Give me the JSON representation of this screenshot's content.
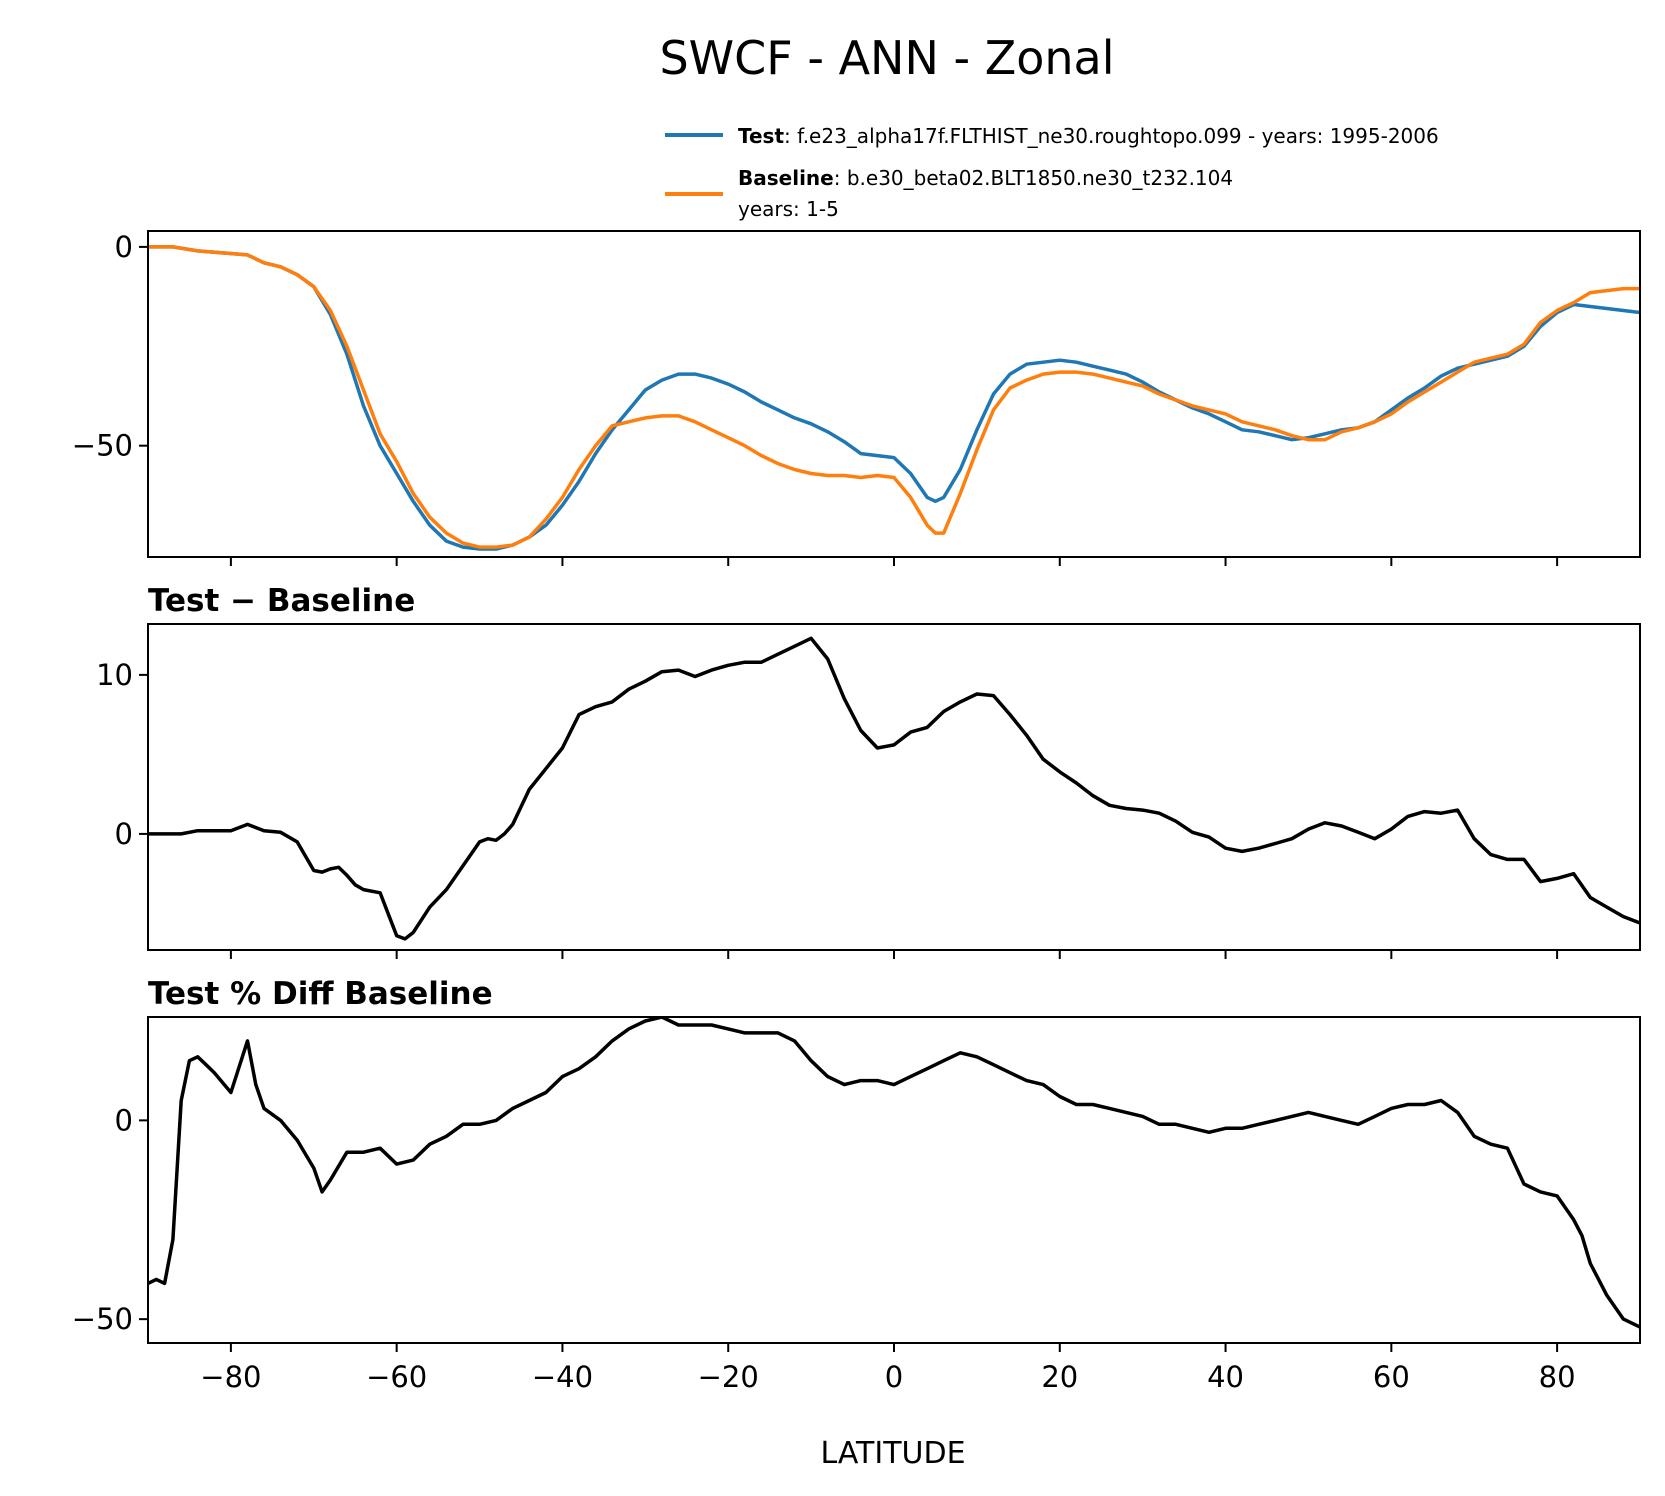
{
  "figure": {
    "title": "SWCF - ANN - Zonal",
    "xlabel": "LATITUDE",
    "xlim": [
      -90,
      90
    ],
    "xticks": [
      -80,
      -60,
      -40,
      -20,
      0,
      20,
      40,
      60,
      80
    ],
    "xtick_labels": [
      "−80",
      "−60",
      "−40",
      "−20",
      "0",
      "20",
      "40",
      "60",
      "80"
    ]
  },
  "legend": {
    "test_key": "Test",
    "test_text": ": f.e23_alpha17f.FLTHIST_ne30.roughtopo.099 - years: 1995-2006",
    "baseline_key": "Baseline",
    "baseline_text": ": b.e30_beta02.BLT1850.ne30_t232.104",
    "baseline_text2": "years: 1-5"
  },
  "colors": {
    "test": "#1f77b4",
    "baseline": "#ff7f0e",
    "difference": "#000000"
  },
  "chart_data": [
    {
      "type": "line",
      "title": "",
      "xlabel": "",
      "ylabel": "",
      "xlim": [
        -90,
        90
      ],
      "ylim": [
        -78,
        4
      ],
      "yticks": [
        0,
        -50
      ],
      "ytick_labels": [
        "0",
        "−50"
      ],
      "legend_position": "above-right",
      "series": [
        {
          "name": "Test",
          "color": "#1f77b4",
          "x": [
            -90,
            -87,
            -84,
            -81,
            -78,
            -76,
            -74,
            -72,
            -70,
            -68,
            -66,
            -64,
            -62,
            -60,
            -58,
            -56,
            -54,
            -52,
            -50,
            -48,
            -46,
            -44,
            -42,
            -40,
            -38,
            -36,
            -34,
            -32,
            -30,
            -28,
            -26,
            -24,
            -22,
            -20,
            -18,
            -16,
            -14,
            -12,
            -10,
            -8,
            -6,
            -4,
            -2,
            0,
            2,
            4,
            5,
            6,
            8,
            10,
            12,
            14,
            16,
            18,
            20,
            22,
            24,
            26,
            28,
            30,
            32,
            34,
            36,
            38,
            40,
            42,
            44,
            46,
            48,
            50,
            52,
            54,
            56,
            58,
            60,
            62,
            64,
            66,
            68,
            70,
            72,
            74,
            76,
            78,
            80,
            82,
            84,
            86,
            88,
            90
          ],
          "y": [
            0,
            0,
            -1,
            -1.5,
            -2,
            -4,
            -5,
            -7,
            -10,
            -17,
            -27,
            -40,
            -50,
            -57,
            -64,
            -70,
            -74,
            -75.5,
            -76,
            -76,
            -75,
            -73,
            -70,
            -65,
            -59,
            -52,
            -46,
            -41,
            -36,
            -33.5,
            -32,
            -32,
            -33,
            -34.5,
            -36.5,
            -39,
            -41,
            -43,
            -44.5,
            -46.5,
            -49,
            -52,
            -52.5,
            -53,
            -57,
            -63,
            -64,
            -63,
            -56,
            -46,
            -37,
            -32,
            -29.5,
            -29,
            -28.5,
            -29,
            -30,
            -31,
            -32,
            -34,
            -36.5,
            -38.5,
            -40.5,
            -42,
            -44,
            -46,
            -46.5,
            -47.5,
            -48.5,
            -48,
            -47,
            -46,
            -45.5,
            -44,
            -41,
            -38,
            -35.5,
            -32.5,
            -30.5,
            -29.5,
            -28.5,
            -27.5,
            -25,
            -20,
            -16.5,
            -14.5,
            -15,
            -15.5,
            -16,
            -16.5
          ]
        },
        {
          "name": "Baseline",
          "color": "#ff7f0e",
          "x": [
            -90,
            -87,
            -84,
            -81,
            -78,
            -76,
            -74,
            -72,
            -70,
            -68,
            -66,
            -64,
            -62,
            -60,
            -58,
            -56,
            -54,
            -52,
            -50,
            -48,
            -46,
            -44,
            -42,
            -40,
            -38,
            -36,
            -34,
            -32,
            -30,
            -28,
            -26,
            -24,
            -22,
            -20,
            -18,
            -16,
            -14,
            -12,
            -10,
            -8,
            -6,
            -4,
            -2,
            0,
            2,
            4,
            5,
            6,
            8,
            10,
            12,
            14,
            16,
            18,
            20,
            22,
            24,
            26,
            28,
            30,
            32,
            34,
            36,
            38,
            40,
            42,
            44,
            46,
            48,
            50,
            52,
            54,
            56,
            58,
            60,
            62,
            64,
            66,
            68,
            70,
            72,
            74,
            76,
            78,
            80,
            82,
            84,
            86,
            88,
            90
          ],
          "y": [
            0,
            0,
            -1,
            -1.5,
            -2,
            -4,
            -5,
            -7,
            -10,
            -16,
            -25,
            -36,
            -47,
            -54,
            -62,
            -68,
            -72,
            -74.5,
            -75.5,
            -75.5,
            -75,
            -73,
            -68.5,
            -63,
            -56,
            -50,
            -45,
            -44,
            -43,
            -42.5,
            -42.5,
            -44,
            -46,
            -48,
            -50,
            -52.5,
            -54.5,
            -56,
            -57,
            -57.5,
            -57.5,
            -58,
            -57.5,
            -58,
            -63,
            -70,
            -72,
            -72,
            -62,
            -51,
            -41,
            -35.5,
            -33.5,
            -32,
            -31.5,
            -31.5,
            -32,
            -33,
            -34,
            -35,
            -37,
            -38.5,
            -40,
            -41,
            -42,
            -44,
            -45,
            -46,
            -47.5,
            -48.5,
            -48.5,
            -46.5,
            -45.5,
            -44,
            -42,
            -39,
            -36.5,
            -34,
            -31.5,
            -29,
            -28,
            -27,
            -24.5,
            -19,
            -16,
            -14,
            -11.5,
            -11,
            -10.5,
            -10.5
          ]
        }
      ]
    },
    {
      "type": "line",
      "title": "Test − Baseline",
      "xlabel": "",
      "ylabel": "",
      "xlim": [
        -90,
        90
      ],
      "ylim": [
        -7.3,
        13.2
      ],
      "yticks": [
        10,
        0
      ],
      "ytick_labels": [
        "10",
        "0"
      ],
      "series": [
        {
          "name": "",
          "color": "#000000",
          "x": [
            -90,
            -86,
            -84,
            -80,
            -78,
            -76,
            -74,
            -72,
            -70,
            -69,
            -68,
            -67,
            -66,
            -65,
            -64,
            -62,
            -60,
            -59,
            -58,
            -57,
            -56,
            -54,
            -52,
            -50,
            -49,
            -48,
            -47,
            -46,
            -44,
            -42,
            -40,
            -38,
            -36,
            -34,
            -32,
            -30,
            -28,
            -26,
            -24,
            -22,
            -20,
            -18,
            -16,
            -14,
            -12,
            -10,
            -8,
            -6,
            -4,
            -2,
            0,
            2,
            4,
            6,
            8,
            10,
            12,
            14,
            16,
            18,
            20,
            22,
            24,
            26,
            28,
            30,
            32,
            34,
            36,
            38,
            40,
            42,
            44,
            46,
            48,
            50,
            52,
            54,
            56,
            58,
            60,
            62,
            64,
            66,
            68,
            70,
            72,
            74,
            76,
            78,
            80,
            82,
            84,
            86,
            88,
            90
          ],
          "y": [
            0,
            0,
            0.2,
            0.2,
            0.6,
            0.2,
            0.1,
            -0.5,
            -2.3,
            -2.4,
            -2.2,
            -2.1,
            -2.6,
            -3.2,
            -3.5,
            -3.7,
            -6.4,
            -6.6,
            -6.2,
            -5.4,
            -4.6,
            -3.5,
            -2,
            -0.5,
            -0.3,
            -0.4,
            0,
            0.6,
            2.8,
            4.1,
            5.4,
            7.5,
            8,
            8.3,
            9.1,
            9.6,
            10.2,
            10.3,
            9.9,
            10.3,
            10.6,
            10.8,
            10.8,
            11.3,
            11.8,
            12.3,
            11,
            8.5,
            6.5,
            5.4,
            5.6,
            6.4,
            6.7,
            7.7,
            8.3,
            8.8,
            8.7,
            7.5,
            6.2,
            4.7,
            3.9,
            3.2,
            2.4,
            1.8,
            1.6,
            1.5,
            1.3,
            0.8,
            0.1,
            -0.2,
            -0.9,
            -1.1,
            -0.9,
            -0.6,
            -0.3,
            0.3,
            0.7,
            0.5,
            0.1,
            -0.3,
            0.3,
            1.1,
            1.4,
            1.3,
            1.5,
            -0.3,
            -1.3,
            -1.6,
            -1.6,
            -3,
            -2.8,
            -2.5,
            -4,
            -4.6,
            -5.2,
            -5.6
          ]
        }
      ]
    },
    {
      "type": "line",
      "title": "Test % Diff Baseline",
      "xlabel": "LATITUDE",
      "ylabel": "",
      "xlim": [
        -90,
        90
      ],
      "ylim": [
        -56,
        26
      ],
      "yticks": [
        0,
        -50
      ],
      "ytick_labels": [
        "0",
        "−50"
      ],
      "series": [
        {
          "name": "",
          "color": "#000000",
          "x": [
            -90,
            -89,
            -88,
            -87,
            -86,
            -85,
            -84,
            -83,
            -82,
            -80,
            -78,
            -77,
            -76,
            -74,
            -72,
            -70,
            -69,
            -68,
            -66,
            -64,
            -62,
            -60,
            -58,
            -56,
            -54,
            -52,
            -50,
            -48,
            -46,
            -44,
            -42,
            -40,
            -38,
            -36,
            -34,
            -32,
            -30,
            -28,
            -26,
            -24,
            -22,
            -20,
            -18,
            -16,
            -14,
            -12,
            -10,
            -8,
            -6,
            -4,
            -2,
            0,
            2,
            4,
            6,
            8,
            10,
            12,
            14,
            16,
            18,
            20,
            22,
            24,
            26,
            28,
            30,
            32,
            34,
            36,
            38,
            40,
            42,
            44,
            46,
            48,
            50,
            52,
            54,
            56,
            58,
            60,
            62,
            64,
            66,
            68,
            70,
            72,
            74,
            76,
            78,
            80,
            82,
            83,
            84,
            85,
            86,
            88,
            90
          ],
          "y": [
            -41,
            -40,
            -41,
            -30,
            5,
            15,
            16,
            14,
            12,
            7,
            20,
            9,
            3,
            0,
            -5,
            -12,
            -18,
            -15,
            -8,
            -8,
            -7,
            -11,
            -10,
            -6,
            -4,
            -1,
            -1,
            0,
            3,
            5,
            7,
            11,
            13,
            16,
            20,
            23,
            25,
            26,
            24,
            24,
            24,
            23,
            22,
            22,
            22,
            20,
            15,
            11,
            9,
            10,
            10,
            9,
            11,
            13,
            15,
            17,
            16,
            14,
            12,
            10,
            9,
            6,
            4,
            4,
            3,
            2,
            1,
            -1,
            -1,
            -2,
            -3,
            -2,
            -2,
            -1,
            0,
            1,
            2,
            1,
            0,
            -1,
            1,
            3,
            4,
            4,
            5,
            2,
            -4,
            -6,
            -7,
            -16,
            -18,
            -19,
            -25,
            -29,
            -36,
            -40,
            -44,
            -50,
            -52
          ]
        }
      ]
    }
  ]
}
